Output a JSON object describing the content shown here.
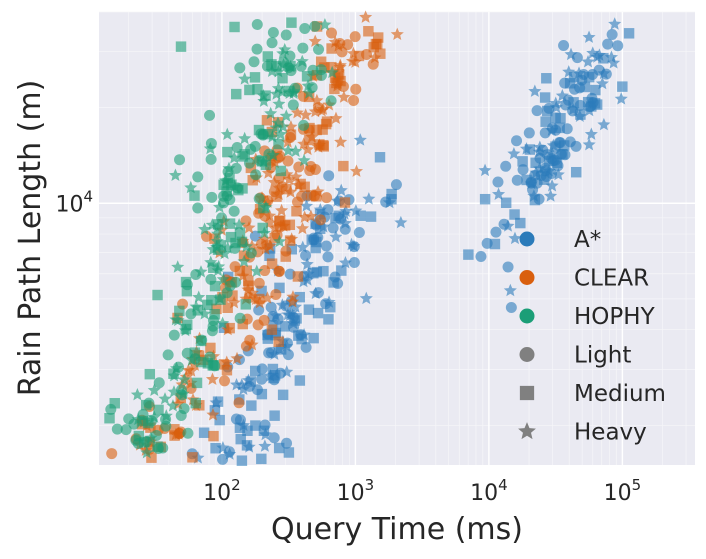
{
  "chart_data": {
    "type": "scatter",
    "title": "",
    "xlabel": "Query Time (ms)",
    "ylabel": "Rain Path Length (m)",
    "xscale": "log",
    "yscale": "log",
    "xlim": [
      12,
      350000
    ],
    "ylim": [
      1500,
      40000
    ],
    "x_ticks": [
      {
        "value": 100,
        "base": "10",
        "exp": "2"
      },
      {
        "value": 1000,
        "base": "10",
        "exp": "3"
      },
      {
        "value": 10000,
        "base": "10",
        "exp": "4"
      },
      {
        "value": 100000,
        "base": "10",
        "exp": "5"
      }
    ],
    "y_ticks": [
      {
        "value": 10000,
        "base": "10",
        "exp": "4"
      }
    ],
    "grid": true,
    "legend_placement": "lower right",
    "legend": [
      {
        "label": "A*",
        "marker": "circle",
        "color": "#2b7bba"
      },
      {
        "label": "CLEAR",
        "marker": "circle",
        "color": "#d95f0e"
      },
      {
        "label": "HOPHY",
        "marker": "circle",
        "color": "#1b9e77"
      },
      {
        "label": "Light",
        "marker": "circle",
        "color": "#808080"
      },
      {
        "label": "Medium",
        "marker": "square",
        "color": "#808080"
      },
      {
        "label": "Heavy",
        "marker": "star",
        "color": "#808080"
      }
    ],
    "series": [
      {
        "algorithm": "A*",
        "color": "#2b7bba",
        "clusters": [
          {
            "x": 170,
            "y": 1750,
            "sx": 0.22,
            "sy": 0.06,
            "n": 30,
            "c": 0.0
          },
          {
            "x": 300,
            "y": 4000,
            "sx": 0.3,
            "sy": 0.18,
            "n": 110,
            "c": 0.85
          },
          {
            "x": 650,
            "y": 8500,
            "sx": 0.22,
            "sy": 0.1,
            "n": 45,
            "c": 0.7
          },
          {
            "x": 30000,
            "y": 16000,
            "sx": 0.3,
            "sy": 0.2,
            "n": 150,
            "c": 0.85
          }
        ]
      },
      {
        "algorithm": "CLEAR",
        "color": "#d95f0e",
        "clusters": [
          {
            "x": 30,
            "y": 1750,
            "sx": 0.12,
            "sy": 0.05,
            "n": 20,
            "c": 0.0
          },
          {
            "x": 60,
            "y": 2500,
            "sx": 0.15,
            "sy": 0.1,
            "n": 20,
            "c": 0.5
          },
          {
            "x": 180,
            "y": 6000,
            "sx": 0.28,
            "sy": 0.25,
            "n": 120,
            "c": 0.8
          },
          {
            "x": 450,
            "y": 16000,
            "sx": 0.25,
            "sy": 0.2,
            "n": 90,
            "c": 0.8
          },
          {
            "x": 800,
            "y": 27000,
            "sx": 0.2,
            "sy": 0.08,
            "n": 25,
            "c": 0.5
          }
        ]
      },
      {
        "algorithm": "HOPHY",
        "color": "#1b9e77",
        "clusters": [
          {
            "x": 25,
            "y": 1800,
            "sx": 0.12,
            "sy": 0.06,
            "n": 30,
            "c": 0.0
          },
          {
            "x": 60,
            "y": 3500,
            "sx": 0.2,
            "sy": 0.2,
            "n": 60,
            "c": 0.8
          },
          {
            "x": 120,
            "y": 10500,
            "sx": 0.25,
            "sy": 0.25,
            "n": 120,
            "c": 0.6
          },
          {
            "x": 300,
            "y": 25000,
            "sx": 0.2,
            "sy": 0.12,
            "n": 60,
            "c": 0.6
          }
        ]
      }
    ]
  }
}
